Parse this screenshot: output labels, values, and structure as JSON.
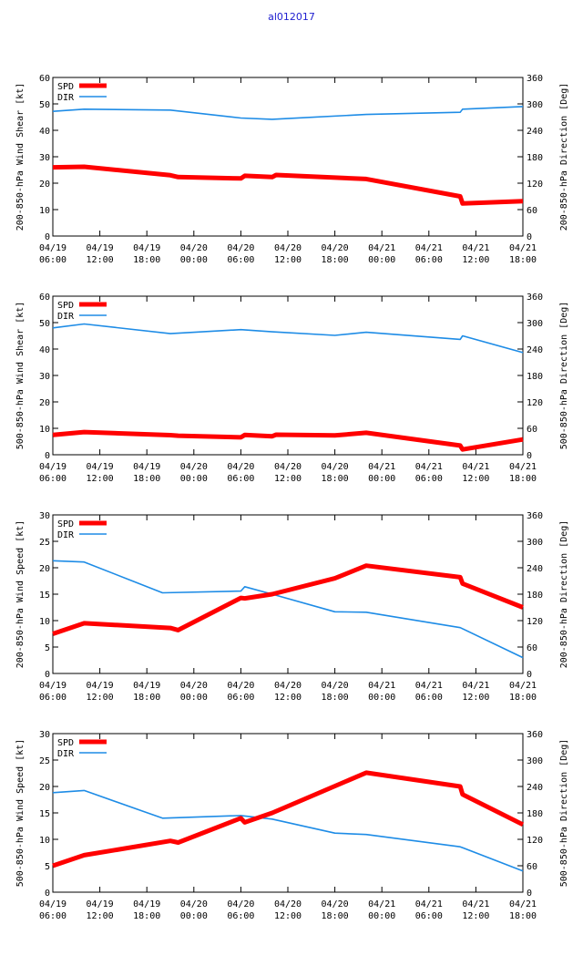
{
  "title": "al012017",
  "colors": {
    "spd": "#ff0000",
    "dir": "#1e8ce6",
    "axis": "#000000"
  },
  "chart_data": [
    {
      "type": "line",
      "ylabel": "200-850-hPa Wind Shear [kt]",
      "y2label": "200-850-hPa Direction [Deg]",
      "ylim": [
        0,
        60
      ],
      "y2lim": [
        0,
        360
      ],
      "yticks": [
        0,
        10,
        20,
        30,
        40,
        50,
        60
      ],
      "y2ticks": [
        0,
        60,
        120,
        180,
        240,
        300,
        360
      ],
      "xlim": [
        0,
        60
      ],
      "xticks": [
        {
          "x": 0,
          "l1": "04/19",
          "l2": "06:00"
        },
        {
          "x": 6,
          "l1": "04/19",
          "l2": "12:00"
        },
        {
          "x": 12,
          "l1": "04/19",
          "l2": "18:00"
        },
        {
          "x": 18,
          "l1": "04/20",
          "l2": "00:00"
        },
        {
          "x": 24,
          "l1": "04/20",
          "l2": "06:00"
        },
        {
          "x": 30,
          "l1": "04/20",
          "l2": "12:00"
        },
        {
          "x": 36,
          "l1": "04/20",
          "l2": "18:00"
        },
        {
          "x": 42,
          "l1": "04/21",
          "l2": "00:00"
        },
        {
          "x": 48,
          "l1": "04/21",
          "l2": "06:00"
        },
        {
          "x": 54,
          "l1": "04/21",
          "l2": "12:00"
        },
        {
          "x": 60,
          "l1": "04/21",
          "l2": "18:00"
        }
      ],
      "legend": [
        "SPD",
        "DIR"
      ],
      "series": [
        {
          "name": "SPD",
          "axis": "left",
          "x": [
            0,
            4,
            15,
            16,
            24,
            24.5,
            28,
            28.5,
            40,
            52,
            52.3,
            60
          ],
          "values": [
            26,
            26.2,
            23,
            22.3,
            21.8,
            22.8,
            22.3,
            23.1,
            21.6,
            15,
            12.3,
            13.2
          ]
        },
        {
          "name": "DIR",
          "axis": "right",
          "x": [
            0,
            4,
            15,
            24,
            28,
            40,
            52,
            52.3,
            60
          ],
          "values": [
            283,
            288,
            286,
            268,
            265,
            276,
            281,
            288,
            294
          ]
        }
      ]
    },
    {
      "type": "line",
      "ylabel": "500-850-hPa Wind Shear [kt]",
      "y2label": "500-850-hPa Direction [Deg]",
      "ylim": [
        0,
        60
      ],
      "y2lim": [
        0,
        360
      ],
      "yticks": [
        0,
        10,
        20,
        30,
        40,
        50,
        60
      ],
      "y2ticks": [
        0,
        60,
        120,
        180,
        240,
        300,
        360
      ],
      "xlim": [
        0,
        60
      ],
      "xticks": [
        {
          "x": 0,
          "l1": "04/19",
          "l2": "06:00"
        },
        {
          "x": 6,
          "l1": "04/19",
          "l2": "12:00"
        },
        {
          "x": 12,
          "l1": "04/19",
          "l2": "18:00"
        },
        {
          "x": 18,
          "l1": "04/20",
          "l2": "00:00"
        },
        {
          "x": 24,
          "l1": "04/20",
          "l2": "06:00"
        },
        {
          "x": 30,
          "l1": "04/20",
          "l2": "12:00"
        },
        {
          "x": 36,
          "l1": "04/20",
          "l2": "18:00"
        },
        {
          "x": 42,
          "l1": "04/21",
          "l2": "00:00"
        },
        {
          "x": 48,
          "l1": "04/21",
          "l2": "06:00"
        },
        {
          "x": 54,
          "l1": "04/21",
          "l2": "12:00"
        },
        {
          "x": 60,
          "l1": "04/21",
          "l2": "18:00"
        }
      ],
      "legend": [
        "SPD",
        "DIR"
      ],
      "series": [
        {
          "name": "SPD",
          "axis": "left",
          "x": [
            0,
            4,
            15,
            16,
            24,
            24.5,
            28,
            28.5,
            36,
            40,
            52,
            52.3,
            60
          ],
          "values": [
            7.5,
            8.6,
            7.4,
            7.2,
            6.6,
            7.5,
            7.0,
            7.6,
            7.3,
            8.3,
            3.5,
            2.0,
            5.8
          ]
        },
        {
          "name": "DIR",
          "axis": "right",
          "x": [
            0,
            4,
            15,
            24,
            28,
            36,
            40,
            52,
            52.3,
            60
          ],
          "values": [
            288,
            297,
            275,
            284,
            279,
            271,
            278,
            262,
            270,
            232
          ]
        }
      ]
    },
    {
      "type": "line",
      "ylabel": "200-850-hPa Wind Speed [kt]",
      "y2label": "200-850-hPa Direction [Deg]",
      "ylim": [
        0,
        30
      ],
      "y2lim": [
        0,
        360
      ],
      "yticks": [
        0,
        5,
        10,
        15,
        20,
        25,
        30
      ],
      "y2ticks": [
        0,
        60,
        120,
        180,
        240,
        300,
        360
      ],
      "xlim": [
        0,
        60
      ],
      "xticks": [
        {
          "x": 0,
          "l1": "04/19",
          "l2": "06:00"
        },
        {
          "x": 6,
          "l1": "04/19",
          "l2": "12:00"
        },
        {
          "x": 12,
          "l1": "04/19",
          "l2": "18:00"
        },
        {
          "x": 18,
          "l1": "04/20",
          "l2": "00:00"
        },
        {
          "x": 24,
          "l1": "04/20",
          "l2": "06:00"
        },
        {
          "x": 30,
          "l1": "04/20",
          "l2": "12:00"
        },
        {
          "x": 36,
          "l1": "04/20",
          "l2": "18:00"
        },
        {
          "x": 42,
          "l1": "04/21",
          "l2": "00:00"
        },
        {
          "x": 48,
          "l1": "04/21",
          "l2": "06:00"
        },
        {
          "x": 54,
          "l1": "04/21",
          "l2": "12:00"
        },
        {
          "x": 60,
          "l1": "04/21",
          "l2": "18:00"
        }
      ],
      "legend": [
        "SPD",
        "DIR"
      ],
      "series": [
        {
          "name": "SPD",
          "axis": "left",
          "x": [
            0,
            4,
            15,
            16,
            24,
            24.5,
            28,
            36,
            40,
            52,
            52.3,
            60
          ],
          "values": [
            7.5,
            9.5,
            8.6,
            8.2,
            14.3,
            14.2,
            15.0,
            18.0,
            20.4,
            18.2,
            17.0,
            12.5
          ]
        },
        {
          "name": "DIR",
          "axis": "right",
          "x": [
            0,
            4,
            14,
            24,
            24.5,
            28,
            36,
            40,
            52,
            60
          ],
          "values": [
            256,
            253,
            183,
            187,
            197,
            180,
            140,
            139,
            104,
            36
          ]
        }
      ]
    },
    {
      "type": "line",
      "ylabel": "500-850-hPa Wind Speed [kt]",
      "y2label": "500-850-hPa Direction [Deg]",
      "ylim": [
        0,
        30
      ],
      "y2lim": [
        0,
        360
      ],
      "yticks": [
        0,
        5,
        10,
        15,
        20,
        25,
        30
      ],
      "y2ticks": [
        0,
        60,
        120,
        180,
        240,
        300,
        360
      ],
      "xlim": [
        0,
        60
      ],
      "xticks": [
        {
          "x": 0,
          "l1": "04/19",
          "l2": "06:00"
        },
        {
          "x": 6,
          "l1": "04/19",
          "l2": "12:00"
        },
        {
          "x": 12,
          "l1": "04/19",
          "l2": "18:00"
        },
        {
          "x": 18,
          "l1": "04/20",
          "l2": "00:00"
        },
        {
          "x": 24,
          "l1": "04/20",
          "l2": "06:00"
        },
        {
          "x": 30,
          "l1": "04/20",
          "l2": "12:00"
        },
        {
          "x": 36,
          "l1": "04/20",
          "l2": "18:00"
        },
        {
          "x": 42,
          "l1": "04/21",
          "l2": "00:00"
        },
        {
          "x": 48,
          "l1": "04/21",
          "l2": "06:00"
        },
        {
          "x": 54,
          "l1": "04/21",
          "l2": "12:00"
        },
        {
          "x": 60,
          "l1": "04/21",
          "l2": "18:00"
        }
      ],
      "legend": [
        "SPD",
        "DIR"
      ],
      "series": [
        {
          "name": "SPD",
          "axis": "left",
          "x": [
            0,
            4,
            15,
            16,
            24,
            24.5,
            28,
            40,
            52,
            52.3,
            60
          ],
          "values": [
            5.0,
            7.0,
            9.7,
            9.4,
            14.0,
            13.2,
            15.0,
            22.6,
            20.0,
            18.5,
            12.8
          ]
        },
        {
          "name": "DIR",
          "axis": "right",
          "x": [
            0,
            4,
            14,
            24,
            28,
            36,
            40,
            52,
            60
          ],
          "values": [
            226,
            231,
            168,
            174,
            166,
            134,
            131,
            103,
            48
          ]
        }
      ]
    }
  ]
}
